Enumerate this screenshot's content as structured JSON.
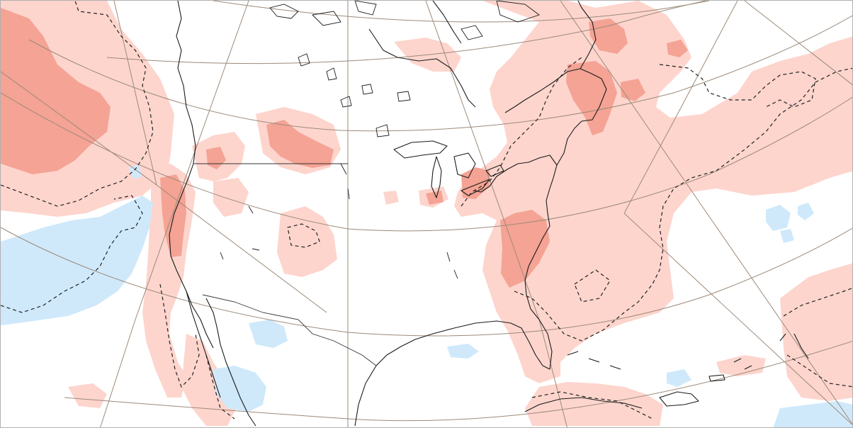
{
  "map": {
    "projection": "lambert-conformal",
    "region": "North America",
    "colors": {
      "background": "#ffffff",
      "anomaly_positive_light": "#fdd5cd",
      "anomaly_positive_strong": "#f4a394",
      "anomaly_negative_light": "#cfe9fb",
      "coastline": "#1a1a1a",
      "borders": "#333333",
      "graticule": "#9c8a7a",
      "contour_dashed": "#222222"
    },
    "layers": [
      "shading-positive-light",
      "shading-positive-strong",
      "shading-negative",
      "coastlines",
      "political-borders",
      "graticule",
      "dashed-contours"
    ]
  }
}
